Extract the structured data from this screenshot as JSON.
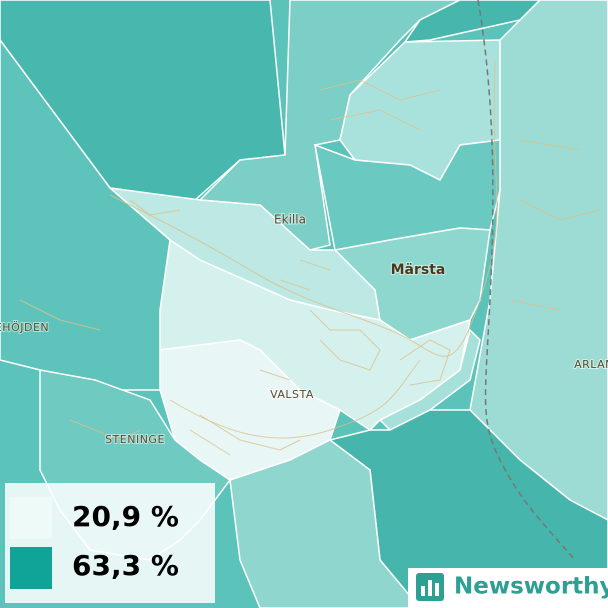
{
  "places": [
    "Ekilla",
    "Märsta",
    "VALSTA",
    "STENINGE",
    "EHÖJDEN",
    "ARLAN"
  ],
  "legend": [
    {
      "label": "20,9 %",
      "color": "#eefaf8"
    },
    {
      "label": "63,3 %",
      "color": "#10a398"
    }
  ],
  "brand": "Newsworthy"
}
